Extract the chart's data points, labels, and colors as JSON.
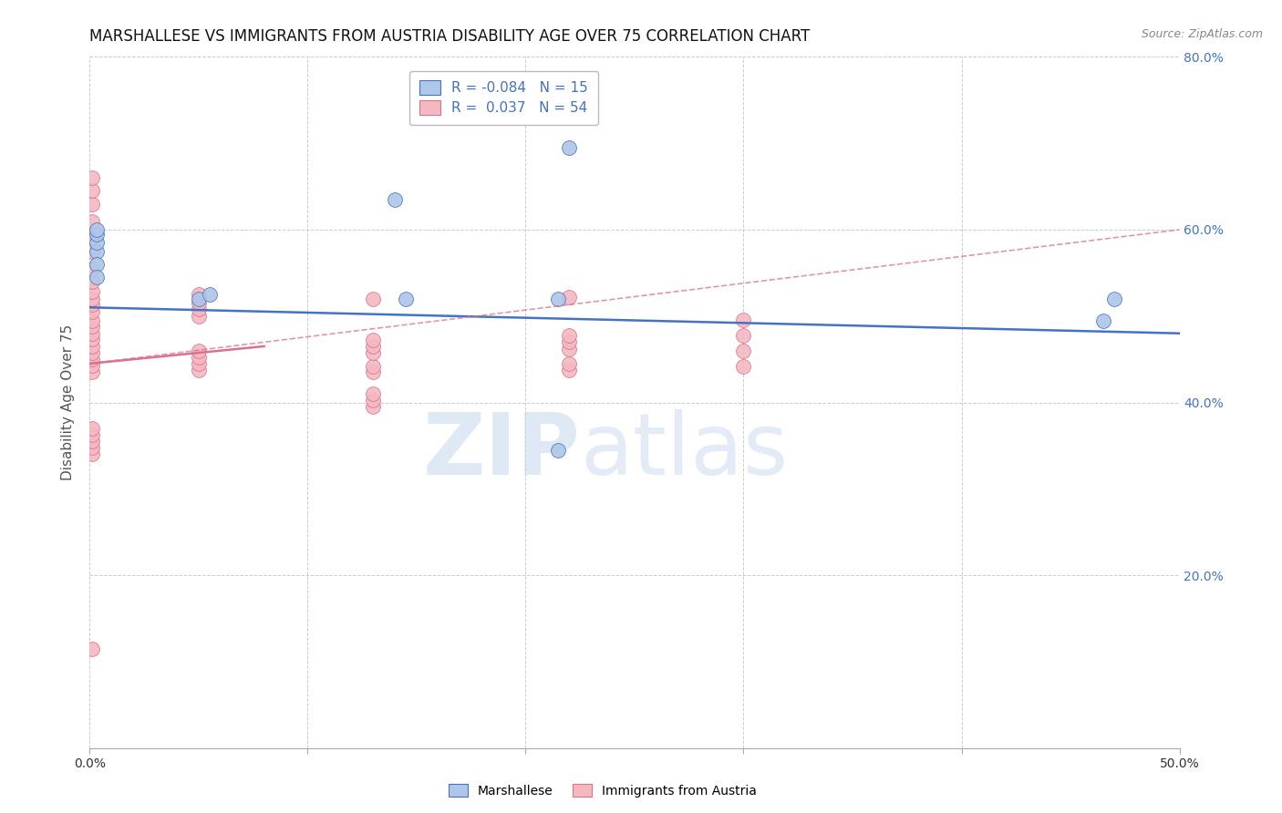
{
  "title": "MARSHALLESE VS IMMIGRANTS FROM AUSTRIA DISABILITY AGE OVER 75 CORRELATION CHART",
  "source": "Source: ZipAtlas.com",
  "ylabel": "Disability Age Over 75",
  "xlim": [
    0.0,
    0.5
  ],
  "ylim": [
    0.0,
    0.8
  ],
  "xticks": [
    0.0,
    0.1,
    0.2,
    0.3,
    0.4,
    0.5
  ],
  "yticks": [
    0.0,
    0.2,
    0.4,
    0.6,
    0.8
  ],
  "xtick_labels_show": [
    "0.0%",
    "",
    "",
    "",
    "",
    "50.0%"
  ],
  "ytick_labels_right": [
    "",
    "20.0%",
    "40.0%",
    "60.0%",
    "80.0%"
  ],
  "legend_label_blue": "R = -0.084   N = 15",
  "legend_label_pink": "R =  0.037   N = 54",
  "watermark_zip": "ZIP",
  "watermark_atlas": "atlas",
  "scatter_blue_color": "#aec6e8",
  "scatter_pink_color": "#f4b8c1",
  "line_blue_color": "#4472c4",
  "line_pink_color": "#d9728a",
  "grid_color": "#cccccc",
  "background_color": "#ffffff",
  "title_fontsize": 12,
  "axis_label_fontsize": 11,
  "tick_label_color_x": "#333333",
  "tick_label_color_y": "#4472c4",
  "blue_scatter_x": [
    0.003,
    0.003,
    0.003,
    0.003,
    0.003,
    0.003,
    0.05,
    0.055,
    0.14,
    0.145,
    0.215,
    0.215,
    0.465,
    0.47,
    0.22
  ],
  "blue_scatter_y": [
    0.575,
    0.585,
    0.595,
    0.6,
    0.56,
    0.545,
    0.52,
    0.525,
    0.635,
    0.52,
    0.52,
    0.345,
    0.495,
    0.52,
    0.695
  ],
  "pink_scatter_x": [
    0.001,
    0.001,
    0.001,
    0.001,
    0.001,
    0.001,
    0.001,
    0.001,
    0.001,
    0.001,
    0.001,
    0.001,
    0.001,
    0.001,
    0.001,
    0.001,
    0.001,
    0.001,
    0.001,
    0.001,
    0.001,
    0.001,
    0.001,
    0.001,
    0.001,
    0.001,
    0.001,
    0.05,
    0.05,
    0.05,
    0.05,
    0.05,
    0.05,
    0.05,
    0.05,
    0.13,
    0.13,
    0.13,
    0.13,
    0.13,
    0.13,
    0.13,
    0.13,
    0.13,
    0.22,
    0.22,
    0.22,
    0.22,
    0.22,
    0.22,
    0.3,
    0.3,
    0.3,
    0.3
  ],
  "pink_scatter_y": [
    0.115,
    0.435,
    0.443,
    0.45,
    0.458,
    0.465,
    0.473,
    0.48,
    0.488,
    0.495,
    0.505,
    0.513,
    0.52,
    0.528,
    0.54,
    0.555,
    0.575,
    0.59,
    0.61,
    0.63,
    0.645,
    0.66,
    0.34,
    0.348,
    0.355,
    0.363,
    0.37,
    0.438,
    0.445,
    0.452,
    0.46,
    0.5,
    0.508,
    0.516,
    0.525,
    0.395,
    0.403,
    0.41,
    0.435,
    0.442,
    0.458,
    0.465,
    0.472,
    0.52,
    0.438,
    0.445,
    0.462,
    0.47,
    0.478,
    0.522,
    0.442,
    0.46,
    0.478,
    0.496
  ],
  "blue_line": {
    "x0": 0.0,
    "y0": 0.51,
    "x1": 0.5,
    "y1": 0.48
  },
  "pink_solid_line": {
    "x0": 0.0,
    "y0": 0.445,
    "x1": 0.08,
    "y1": 0.465
  },
  "pink_dashed_line": {
    "x0": 0.0,
    "y0": 0.445,
    "x1": 0.5,
    "y1": 0.6
  }
}
